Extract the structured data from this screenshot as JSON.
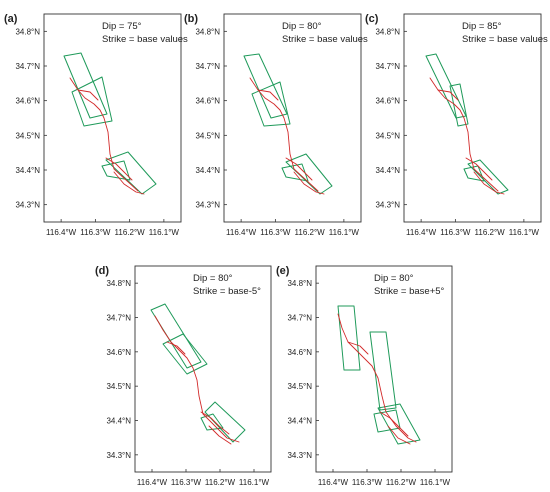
{
  "colors": {
    "fault_box": "#1f9a5a",
    "surface_rupture": "#d22a2a",
    "frame": "#333333",
    "text": "#222222"
  },
  "panels": [
    {
      "id": "a",
      "label": "(a)",
      "dip_text": "Dip = 75°",
      "strike_text": "Strike = base values"
    },
    {
      "id": "b",
      "label": "(b)",
      "dip_text": "Dip = 80°",
      "strike_text": "Strike = base values"
    },
    {
      "id": "c",
      "label": "(c)",
      "dip_text": "Dip = 85°",
      "strike_text": "Strike = base values"
    },
    {
      "id": "d",
      "label": "(d)",
      "dip_text": "Dip = 80°",
      "strike_text": "Strike = base-5°"
    },
    {
      "id": "e",
      "label": "(e)",
      "dip_text": "Dip = 80°",
      "strike_text": "Strike = base+5°"
    }
  ],
  "axes": {
    "lon_ticks": [
      "116.4°W",
      "116.3°W",
      "116.2°W",
      "116.1°W"
    ],
    "lat_ticks": [
      "34.8°N",
      "34.7°N",
      "34.6°N",
      "34.5°N",
      "34.4°N",
      "34.3°N"
    ],
    "lon_values": [
      -116.4,
      -116.3,
      -116.2,
      -116.1
    ],
    "lat_values": [
      34.8,
      34.7,
      34.6,
      34.5,
      34.4,
      34.3
    ],
    "lon_range": [
      -116.45,
      -116.05
    ],
    "lat_range": [
      34.25,
      34.85
    ]
  }
}
